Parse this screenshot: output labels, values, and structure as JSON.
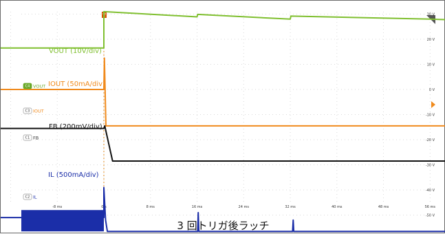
{
  "caption": "3 回トリガ後ラッチ",
  "trigger_marker": "T",
  "chart_data": {
    "type": "line",
    "x_unit": "ms",
    "x_ticks": [
      "-8 ms",
      "0 s",
      "8 ms",
      "16 ms",
      "24 ms",
      "32 ms",
      "40 ms",
      "48 ms",
      "56 ms"
    ],
    "y_ticks": [
      "30 V",
      "20 V",
      "10 V",
      "0 V",
      "-10 V",
      "-20 V",
      "-30 V",
      "-40 V",
      "-50 V",
      "-60 V"
    ],
    "channels": [
      {
        "id": "C4",
        "badge": "C4",
        "badge_text": "VOUT",
        "label": "VOUT (10V/div)",
        "color": "#7fbf2f",
        "points": [
          [
            -18,
            16.5
          ],
          [
            0,
            16.5
          ],
          [
            0,
            31
          ],
          [
            16,
            28.9
          ],
          [
            16.1,
            29.9
          ],
          [
            32,
            28.0
          ],
          [
            32.1,
            29.2
          ],
          [
            56,
            28.0
          ],
          [
            68,
            27.1
          ]
        ]
      },
      {
        "id": "C3",
        "badge": "C3",
        "badge_text": "IOUT",
        "label": "IOUT (50mA/div)",
        "color": "#f08a1c",
        "points": [
          [
            -18,
            0
          ],
          [
            0,
            0
          ],
          [
            0.1,
            12.5
          ],
          [
            0.35,
            -14.5
          ],
          [
            68,
            -14.5
          ]
        ]
      },
      {
        "id": "C1",
        "badge": "C1",
        "badge_text": "FB",
        "label": "FB (200mV/div)",
        "color": "#111111",
        "points": [
          [
            -18,
            -15.5
          ],
          [
            0,
            -15.5
          ],
          [
            0.15,
            -14.5
          ],
          [
            1.5,
            -28.5
          ],
          [
            68,
            -28.5
          ]
        ]
      },
      {
        "id": "C2",
        "badge": "C2",
        "badge_text": "IL",
        "label": "IL (500mA/div)",
        "color": "#1b2ea8",
        "points": [
          [
            -18,
            -51
          ],
          [
            0,
            -51
          ],
          [
            0,
            -39
          ],
          [
            0.3,
            -52
          ],
          [
            0.6,
            -56.5
          ],
          [
            16.1,
            -56.5
          ],
          [
            16.2,
            -49
          ],
          [
            16.3,
            -56.5
          ],
          [
            32.4,
            -56.5
          ],
          [
            32.5,
            -52
          ],
          [
            32.6,
            -56.5
          ],
          [
            68,
            -56.5
          ]
        ]
      }
    ]
  }
}
